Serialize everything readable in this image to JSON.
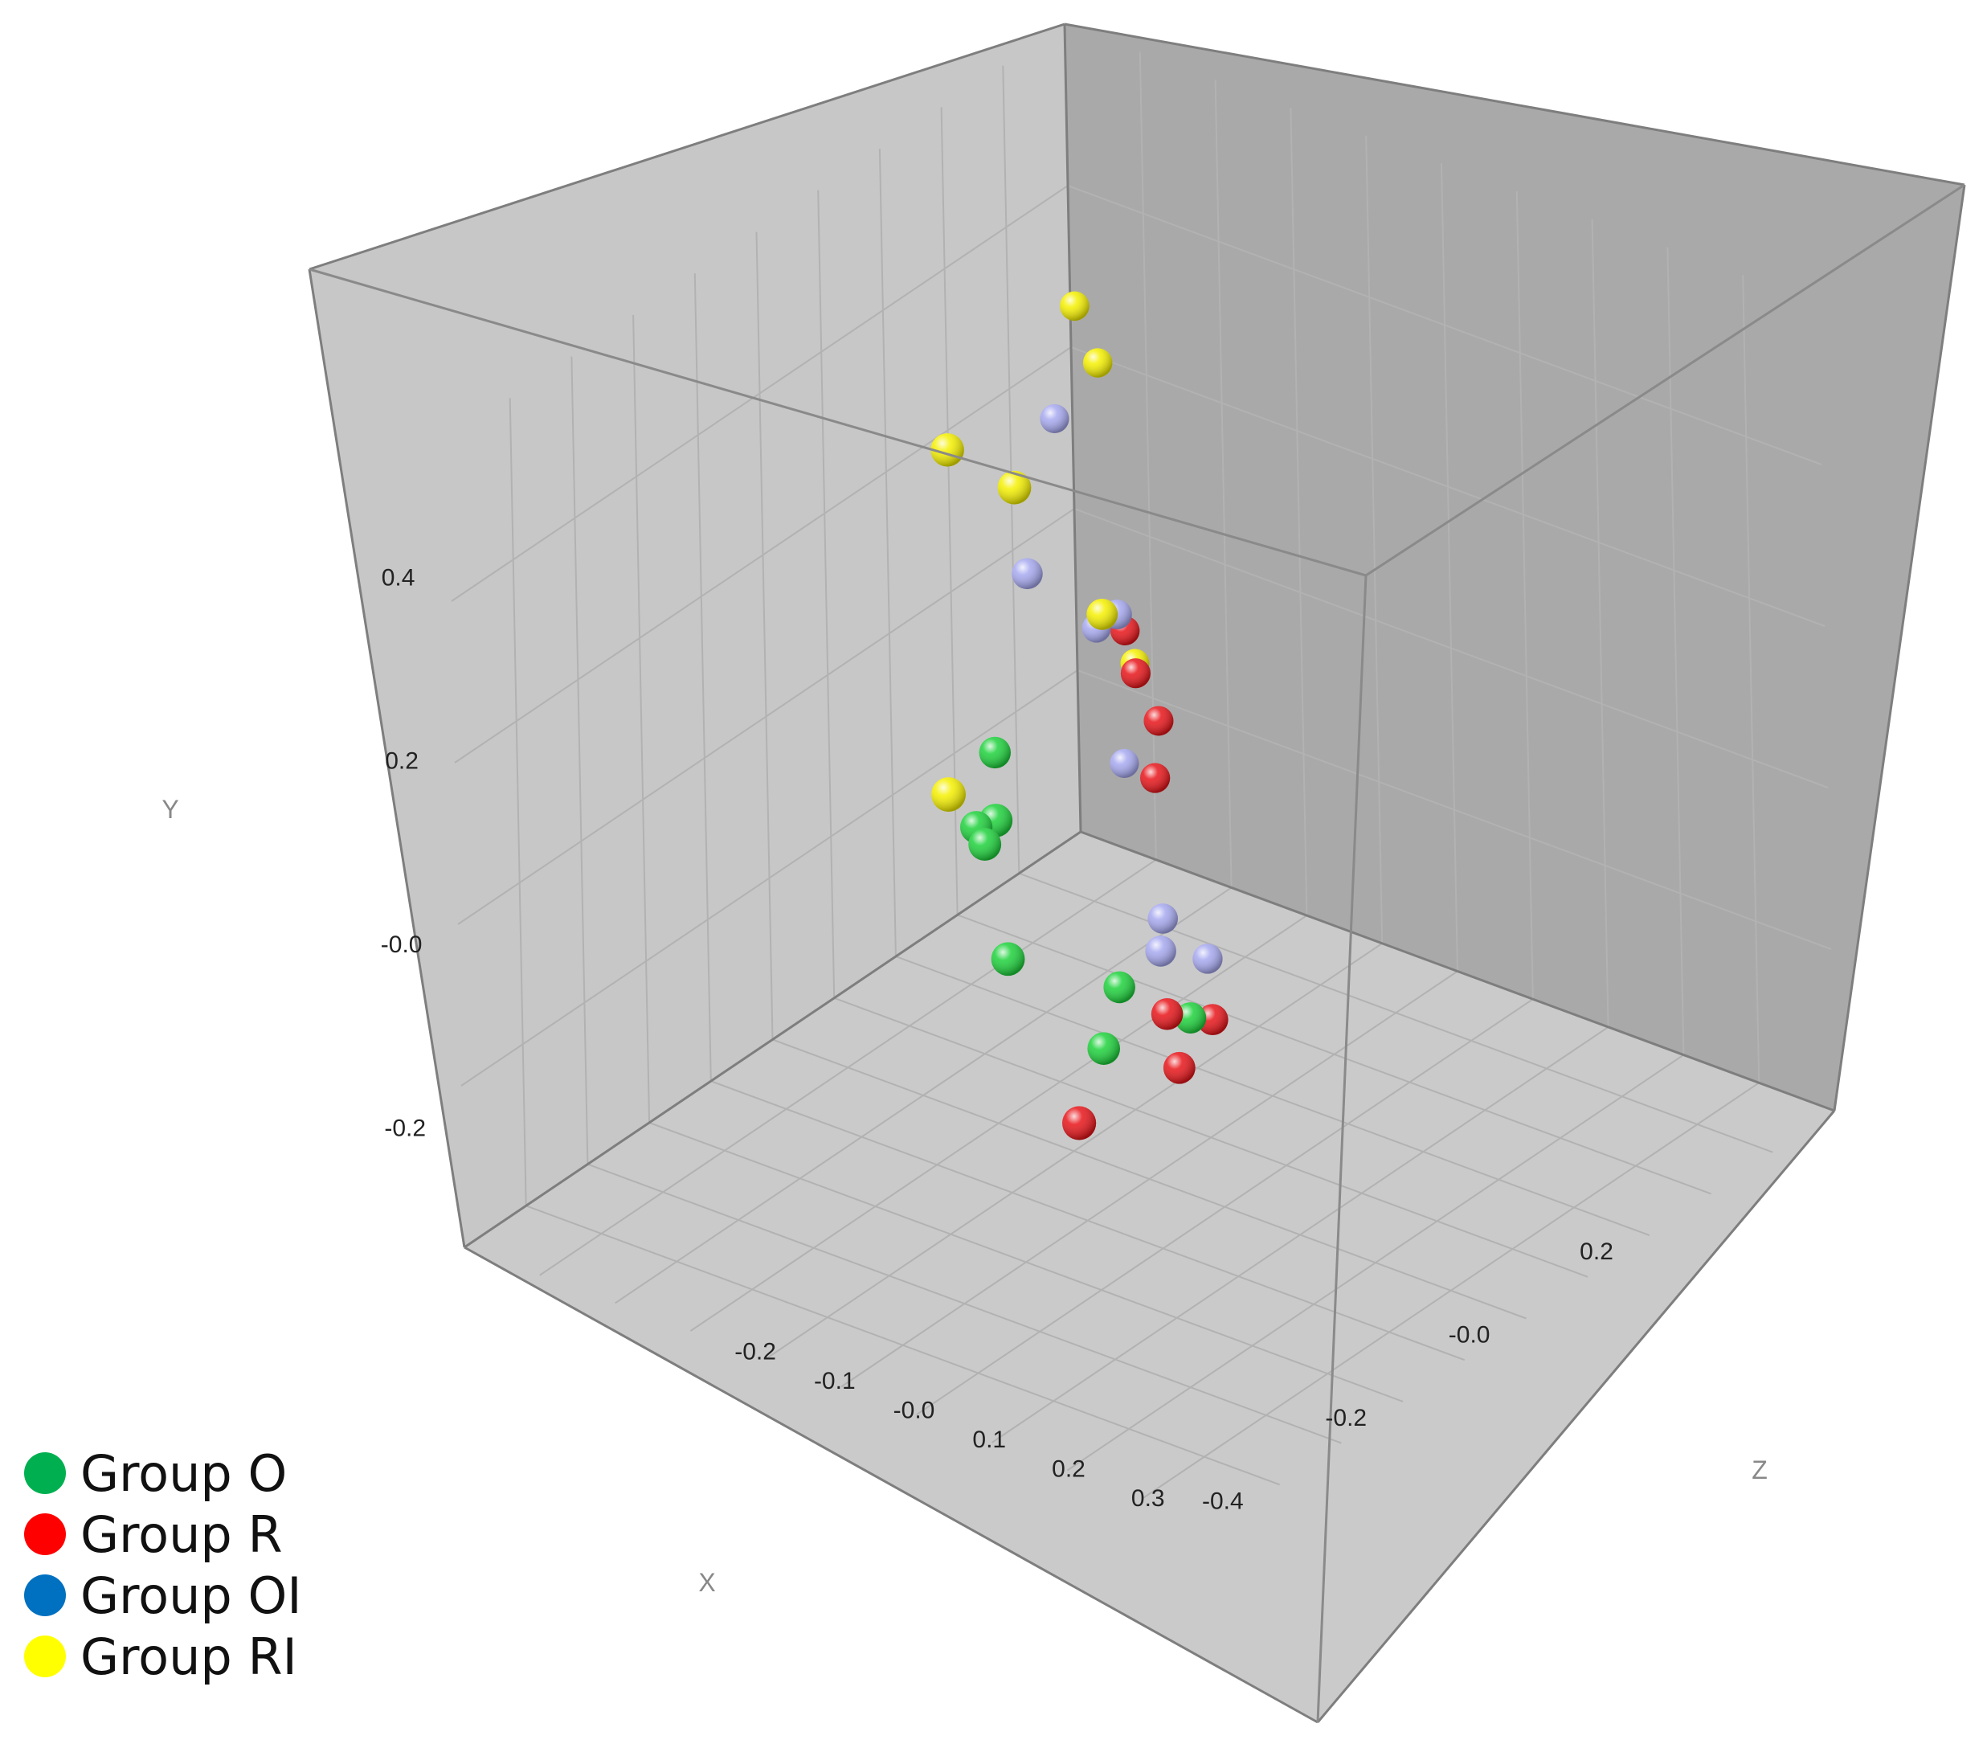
{
  "chart_data": {
    "type": "scatter",
    "subtype": "3d-scatter",
    "axes": {
      "x": {
        "label": "X",
        "ticks": [
          "-0.4",
          "-0.2",
          "-0.0",
          "0.2"
        ]
      },
      "y": {
        "label": "Y",
        "ticks": [
          "0.4",
          "0.2",
          "-0.0",
          "-0.2"
        ]
      },
      "z": {
        "label": "Z",
        "ticks": [
          "-0.2",
          "-0.1",
          "-0.0",
          "0.1",
          "0.2",
          "0.3"
        ]
      }
    },
    "grid": true,
    "legend_placement": "bottom-left",
    "legend": [
      {
        "name": "Group O",
        "color": "#00b050"
      },
      {
        "name": "Group R",
        "color": "#ff0000"
      },
      {
        "name": "Group OI",
        "color": "#0070c0"
      },
      {
        "name": "Group RI",
        "color": "#ffff00"
      }
    ],
    "series": [
      {
        "name": "Group O",
        "color": "#1ed23c",
        "points": [
          {
            "x": -0.14,
            "y": 0.1,
            "z": -0.1
          },
          {
            "x": -0.07,
            "y": 0.02,
            "z": -0.17
          },
          {
            "x": -0.02,
            "y": 0.0,
            "z": -0.22
          },
          {
            "x": -0.15,
            "y": -0.04,
            "z": -0.08
          },
          {
            "x": -0.05,
            "y": -0.17,
            "z": -0.04
          },
          {
            "x": 0.04,
            "y": -0.16,
            "z": -0.09
          },
          {
            "x": 0.09,
            "y": -0.2,
            "z": -0.04
          },
          {
            "x": 0.05,
            "y": 0.04,
            "z": -0.25
          }
        ]
      },
      {
        "name": "Group R",
        "color": "#e8151a",
        "points": [
          {
            "x": -0.18,
            "y": -0.17,
            "z": 0.03
          },
          {
            "x": 0.04,
            "y": -0.17,
            "z": -0.03
          },
          {
            "x": 0.02,
            "y": -0.21,
            "z": 0.0
          },
          {
            "x": 0.1,
            "y": -0.2,
            "z": -0.02
          },
          {
            "x": 0.24,
            "y": 0.05,
            "z": -0.22
          },
          {
            "x": 0.3,
            "y": 0.05,
            "z": -0.28
          },
          {
            "x": 0.25,
            "y": 0.0,
            "z": -0.2
          },
          {
            "x": 0.23,
            "y": -0.05,
            "z": -0.19
          }
        ]
      },
      {
        "name": "Group OI",
        "color": "#a7a9f0",
        "points": [
          {
            "x": 0.12,
            "y": -0.16,
            "z": -0.1
          },
          {
            "x": 0.2,
            "y": -0.18,
            "z": -0.16
          },
          {
            "x": 0.22,
            "y": -0.22,
            "z": -0.12
          },
          {
            "x": 0.12,
            "y": 0.2,
            "z": -0.26
          },
          {
            "x": 0.25,
            "y": 0.1,
            "z": -0.25
          },
          {
            "x": 0.32,
            "y": 0.24,
            "z": -0.38
          },
          {
            "x": 0.33,
            "y": 0.02,
            "z": -0.34
          },
          {
            "x": 0.32,
            "y": -0.11,
            "z": -0.3
          }
        ]
      },
      {
        "name": "Group RI",
        "color": "#f5f000",
        "points": [
          {
            "x": -0.15,
            "y": 0.48,
            "z": -0.06
          },
          {
            "x": -0.13,
            "y": 0.48,
            "z": -0.16
          },
          {
            "x": -0.24,
            "y": 0.18,
            "z": -0.08
          },
          {
            "x": 0.1,
            "y": 0.2,
            "z": -0.15
          },
          {
            "x": 0.28,
            "y": 0.4,
            "z": -0.32
          },
          {
            "x": 0.29,
            "y": 0.34,
            "z": -0.3
          },
          {
            "x": 0.34,
            "y": -0.01,
            "z": -0.3
          }
        ]
      }
    ]
  }
}
